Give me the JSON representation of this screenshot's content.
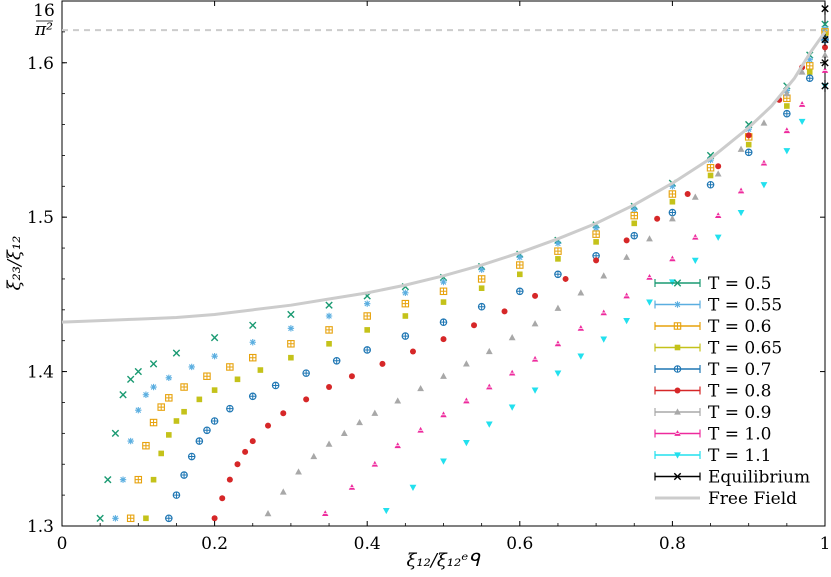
{
  "chart_data": {
    "type": "scatter",
    "xlabel": "ξ₁₂/ξ₁₂ᵉᑫ",
    "ylabel": "ξ₂₃/ξ₁₂",
    "xlim": [
      0,
      1
    ],
    "ylim": [
      1.3,
      1.64
    ],
    "x_ticks": [
      0,
      0.2,
      0.4,
      0.6,
      0.8,
      1
    ],
    "x_tick_labels": [
      "0",
      "0.2",
      "0.4",
      "0.6",
      "0.8",
      "1"
    ],
    "y_ticks": [
      1.3,
      1.4,
      1.5,
      1.6
    ],
    "y_tick_labels": [
      "1.3",
      "1.4",
      "1.5",
      "1.6"
    ],
    "reference_line": {
      "label": "16/π²",
      "y": 1.6211,
      "color": "#cccccc",
      "style": "dashed"
    },
    "grid": false,
    "legend_position": "lower-right",
    "series": [
      {
        "name": "T = 0.5",
        "color": "#1a9a72",
        "marker": "x",
        "x": [
          0.05,
          0.06,
          0.07,
          0.08,
          0.09,
          0.1,
          0.12,
          0.15,
          0.2,
          0.25,
          0.3,
          0.35,
          0.4,
          0.45,
          0.5,
          0.55,
          0.6,
          0.65,
          0.7,
          0.75,
          0.8,
          0.85,
          0.9,
          0.95,
          0.98,
          1.0
        ],
        "y": [
          1.305,
          1.33,
          1.36,
          1.385,
          1.395,
          1.4,
          1.405,
          1.412,
          1.422,
          1.43,
          1.437,
          1.443,
          1.449,
          1.455,
          1.461,
          1.468,
          1.476,
          1.485,
          1.495,
          1.507,
          1.522,
          1.54,
          1.56,
          1.585,
          1.605,
          1.625
        ]
      },
      {
        "name": "T = 0.55",
        "color": "#5aaee0",
        "marker": "asterisk",
        "x": [
          0.07,
          0.08,
          0.09,
          0.1,
          0.11,
          0.12,
          0.14,
          0.17,
          0.2,
          0.25,
          0.3,
          0.35,
          0.4,
          0.45,
          0.5,
          0.55,
          0.6,
          0.65,
          0.7,
          0.75,
          0.8,
          0.85,
          0.9,
          0.95,
          0.98,
          1.0
        ],
        "y": [
          1.305,
          1.33,
          1.355,
          1.375,
          1.385,
          1.39,
          1.396,
          1.403,
          1.41,
          1.419,
          1.428,
          1.436,
          1.444,
          1.451,
          1.458,
          1.466,
          1.474,
          1.483,
          1.493,
          1.505,
          1.52,
          1.537,
          1.557,
          1.582,
          1.602,
          1.622
        ]
      },
      {
        "name": "T = 0.6",
        "color": "#e7a20c",
        "marker": "square-plus",
        "x": [
          0.09,
          0.1,
          0.11,
          0.12,
          0.13,
          0.14,
          0.16,
          0.19,
          0.22,
          0.25,
          0.3,
          0.35,
          0.4,
          0.45,
          0.5,
          0.55,
          0.6,
          0.65,
          0.7,
          0.75,
          0.8,
          0.85,
          0.9,
          0.95,
          0.98,
          1.0
        ],
        "y": [
          1.305,
          1.33,
          1.352,
          1.367,
          1.377,
          1.383,
          1.39,
          1.397,
          1.403,
          1.409,
          1.418,
          1.427,
          1.436,
          1.444,
          1.452,
          1.46,
          1.469,
          1.478,
          1.489,
          1.501,
          1.515,
          1.532,
          1.552,
          1.577,
          1.598,
          1.62
        ]
      },
      {
        "name": "T = 0.65",
        "color": "#c4c21a",
        "marker": "square",
        "x": [
          0.11,
          0.12,
          0.13,
          0.14,
          0.15,
          0.16,
          0.18,
          0.2,
          0.23,
          0.26,
          0.3,
          0.35,
          0.4,
          0.45,
          0.5,
          0.55,
          0.6,
          0.65,
          0.7,
          0.75,
          0.8,
          0.85,
          0.9,
          0.95,
          0.98,
          1.0
        ],
        "y": [
          1.305,
          1.33,
          1.347,
          1.359,
          1.368,
          1.374,
          1.382,
          1.388,
          1.395,
          1.401,
          1.409,
          1.418,
          1.427,
          1.436,
          1.445,
          1.454,
          1.463,
          1.473,
          1.484,
          1.496,
          1.51,
          1.527,
          1.547,
          1.572,
          1.594,
          1.618
        ]
      },
      {
        "name": "T = 0.7",
        "color": "#1f77b4",
        "marker": "circle-plus",
        "x": [
          0.14,
          0.15,
          0.16,
          0.17,
          0.18,
          0.19,
          0.2,
          0.22,
          0.25,
          0.28,
          0.32,
          0.36,
          0.4,
          0.45,
          0.5,
          0.55,
          0.6,
          0.65,
          0.7,
          0.75,
          0.8,
          0.85,
          0.9,
          0.95,
          0.98,
          1.0
        ],
        "y": [
          1.305,
          1.32,
          1.333,
          1.345,
          1.355,
          1.362,
          1.368,
          1.376,
          1.384,
          1.391,
          1.399,
          1.407,
          1.414,
          1.423,
          1.432,
          1.442,
          1.452,
          1.463,
          1.475,
          1.488,
          1.503,
          1.521,
          1.542,
          1.567,
          1.59,
          1.615
        ]
      },
      {
        "name": "T = 0.8",
        "color": "#d62728",
        "marker": "circle",
        "x": [
          0.2,
          0.21,
          0.22,
          0.23,
          0.24,
          0.25,
          0.27,
          0.29,
          0.32,
          0.35,
          0.38,
          0.42,
          0.46,
          0.5,
          0.54,
          0.58,
          0.62,
          0.66,
          0.7,
          0.74,
          0.78,
          0.82,
          0.86,
          0.9,
          0.94,
          0.97,
          1.0
        ],
        "y": [
          1.305,
          1.318,
          1.33,
          1.34,
          1.348,
          1.355,
          1.365,
          1.373,
          1.382,
          1.39,
          1.397,
          1.405,
          1.413,
          1.421,
          1.43,
          1.439,
          1.449,
          1.46,
          1.472,
          1.485,
          1.499,
          1.515,
          1.533,
          1.553,
          1.576,
          1.597,
          1.61
        ]
      },
      {
        "name": "T = 0.9",
        "color": "#a8a8a8",
        "marker": "triangle-up",
        "x": [
          0.27,
          0.29,
          0.31,
          0.33,
          0.35,
          0.37,
          0.39,
          0.41,
          0.44,
          0.47,
          0.5,
          0.53,
          0.56,
          0.59,
          0.62,
          0.65,
          0.68,
          0.71,
          0.74,
          0.77,
          0.8,
          0.83,
          0.86,
          0.89,
          0.92,
          0.95,
          0.97,
          1.0
        ],
        "y": [
          1.308,
          1.322,
          1.335,
          1.345,
          1.353,
          1.36,
          1.367,
          1.373,
          1.381,
          1.389,
          1.397,
          1.405,
          1.413,
          1.422,
          1.431,
          1.441,
          1.451,
          1.462,
          1.474,
          1.486,
          1.499,
          1.513,
          1.528,
          1.544,
          1.561,
          1.58,
          1.594,
          1.605
        ]
      },
      {
        "name": "T = 1.0",
        "color": "#ee2a9d",
        "marker": "triangle-plus",
        "x": [
          0.345,
          0.38,
          0.41,
          0.44,
          0.47,
          0.5,
          0.53,
          0.56,
          0.59,
          0.62,
          0.65,
          0.68,
          0.71,
          0.74,
          0.77,
          0.8,
          0.83,
          0.86,
          0.89,
          0.92,
          0.95,
          0.97,
          1.0
        ],
        "y": [
          1.308,
          1.325,
          1.34,
          1.352,
          1.362,
          1.372,
          1.381,
          1.39,
          1.399,
          1.408,
          1.418,
          1.428,
          1.438,
          1.449,
          1.461,
          1.473,
          1.487,
          1.501,
          1.517,
          1.535,
          1.556,
          1.573,
          1.595
        ]
      },
      {
        "name": "T = 1.1",
        "color": "#22e0ee",
        "marker": "triangle-down",
        "x": [
          0.425,
          0.46,
          0.5,
          0.53,
          0.56,
          0.59,
          0.62,
          0.65,
          0.68,
          0.71,
          0.74,
          0.77,
          0.8,
          0.83,
          0.86,
          0.89,
          0.92,
          0.95,
          0.97,
          1.0
        ],
        "y": [
          1.31,
          1.325,
          1.342,
          1.354,
          1.366,
          1.377,
          1.388,
          1.399,
          1.41,
          1.421,
          1.433,
          1.445,
          1.458,
          1.472,
          1.487,
          1.503,
          1.521,
          1.543,
          1.562,
          1.585
        ]
      },
      {
        "name": "Equilibrium",
        "color": "#000000",
        "marker": "x",
        "x": [
          1.0,
          1.0,
          1.0,
          1.0
        ],
        "y": [
          1.585,
          1.6,
          1.615,
          1.635
        ]
      },
      {
        "name": "Free Field",
        "color": "#cccccc",
        "marker": "line",
        "x": [
          0,
          0.05,
          0.1,
          0.15,
          0.2,
          0.25,
          0.3,
          0.35,
          0.4,
          0.45,
          0.5,
          0.55,
          0.6,
          0.65,
          0.7,
          0.75,
          0.8,
          0.85,
          0.9,
          0.93,
          0.96,
          0.98,
          1.0
        ],
        "y": [
          1.432,
          1.433,
          1.434,
          1.435,
          1.437,
          1.44,
          1.443,
          1.447,
          1.451,
          1.456,
          1.462,
          1.469,
          1.477,
          1.486,
          1.496,
          1.508,
          1.522,
          1.538,
          1.558,
          1.572,
          1.59,
          1.606,
          1.62
        ]
      }
    ],
    "legend_entries": [
      "T = 0.5",
      "T = 0.55",
      "T = 0.6",
      "T = 0.65",
      "T = 0.7",
      "T = 0.8",
      "T = 0.9",
      "T = 1.0",
      "T = 1.1",
      "Equilibrium",
      "Free Field"
    ]
  }
}
